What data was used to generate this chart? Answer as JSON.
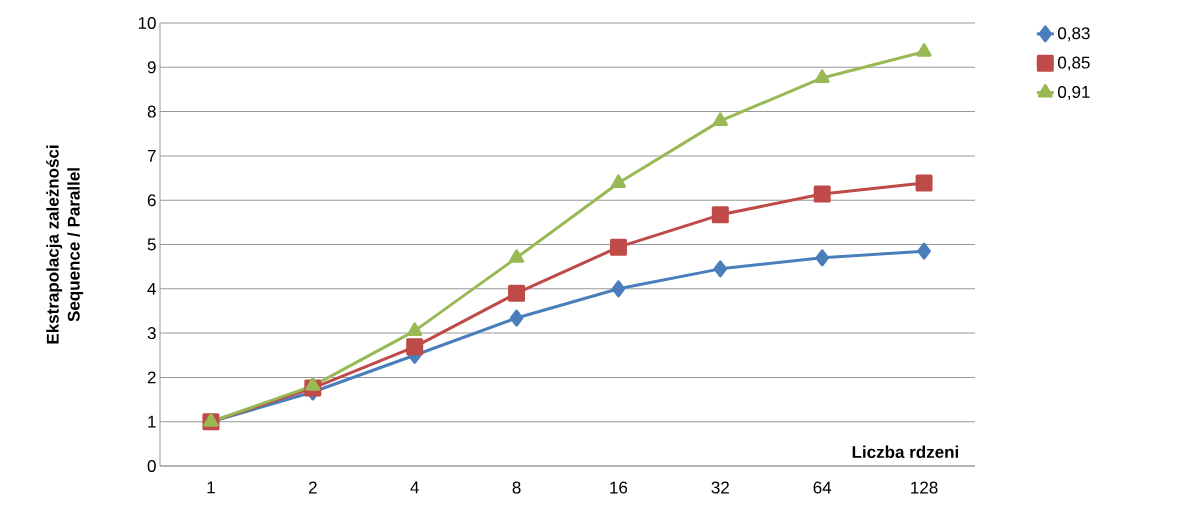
{
  "chart_data": {
    "type": "line",
    "ylabel": "Ekstrapolacja  zależności\nSequence / Parallel",
    "xlabel": "Liczba rdzeni",
    "categories": [
      "1",
      "2",
      "4",
      "8",
      "16",
      "32",
      "64",
      "128"
    ],
    "series": [
      {
        "name": "0,83",
        "color": "#4a7ebb",
        "marker": "diamond",
        "values": [
          1.0,
          1.67,
          2.5,
          3.34,
          4.0,
          4.45,
          4.7,
          4.85
        ]
      },
      {
        "name": "0,85",
        "color": "#be4b48",
        "marker": "square",
        "values": [
          1.0,
          1.76,
          2.69,
          3.9,
          4.94,
          5.67,
          6.14,
          6.39
        ]
      },
      {
        "name": "0,91",
        "color": "#98b954",
        "marker": "triangle",
        "values": [
          1.0,
          1.81,
          3.05,
          4.7,
          6.39,
          7.79,
          8.76,
          9.35
        ]
      }
    ],
    "ylim": [
      0,
      10
    ],
    "yticks": [
      0,
      1,
      2,
      3,
      4,
      5,
      6,
      7,
      8,
      9,
      10
    ],
    "grid": "y",
    "legend": "top right",
    "line_style": "solid"
  }
}
